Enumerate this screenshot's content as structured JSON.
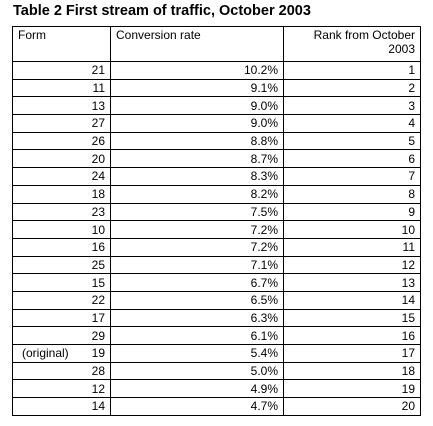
{
  "title": "Table 2 First stream of traffic, October 2003",
  "table": {
    "header": [
      "Form",
      "Conversion rate",
      "Rank from October 2003"
    ],
    "rows": [
      {
        "form": "21",
        "rate": "10.2%",
        "rank": "1"
      },
      {
        "form": "11",
        "rate": "9.1%",
        "rank": "2"
      },
      {
        "form": "13",
        "rate": "9.0%",
        "rank": "3"
      },
      {
        "form": "27",
        "rate": "9.0%",
        "rank": "4"
      },
      {
        "form": "26",
        "rate": "8.8%",
        "rank": "5"
      },
      {
        "form": "20",
        "rate": "8.7%",
        "rank": "6"
      },
      {
        "form": "24",
        "rate": "8.3%",
        "rank": "7"
      },
      {
        "form": "18",
        "rate": "8.2%",
        "rank": "8"
      },
      {
        "form": "23",
        "rate": "7.5%",
        "rank": "9"
      },
      {
        "form": "10",
        "rate": "7.2%",
        "rank": "10"
      },
      {
        "form": "16",
        "rate": "7.2%",
        "rank": "11"
      },
      {
        "form": "25",
        "rate": "7.1%",
        "rank": "12"
      },
      {
        "form": "15",
        "rate": "6.7%",
        "rank": "13"
      },
      {
        "form": "22",
        "rate": "6.5%",
        "rank": "14"
      },
      {
        "form": "17",
        "rate": "6.3%",
        "rank": "15"
      },
      {
        "form": "29",
        "rate": "6.1%",
        "rank": "16"
      },
      {
        "note": "(original)",
        "form": "19",
        "rate": "5.4%",
        "rank": "17"
      },
      {
        "form": "28",
        "rate": "5.0%",
        "rank": "18"
      },
      {
        "form": "12",
        "rate": "4.9%",
        "rank": "19"
      },
      {
        "form": "14",
        "rate": "4.7%",
        "rank": "20"
      }
    ]
  }
}
